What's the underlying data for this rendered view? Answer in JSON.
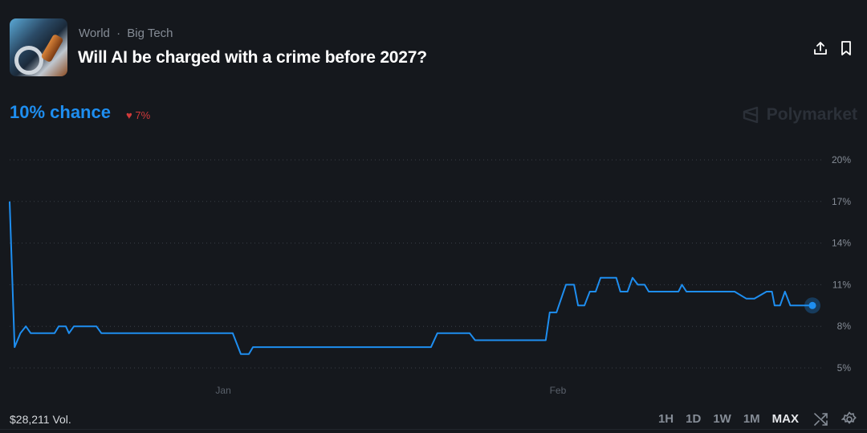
{
  "header": {
    "breadcrumbs": [
      "World",
      "Big Tech"
    ],
    "separator": "·",
    "title": "Will AI be charged with a crime before 2027?",
    "thumbnail_icon": "handcuffs-gavel-image",
    "share_icon": "share-icon",
    "bookmark_icon": "bookmark-icon"
  },
  "summary": {
    "chance_label": "10% chance",
    "delta_label": "7%",
    "delta_direction": "down",
    "brand": "Polymarket"
  },
  "footer": {
    "volume": "$28,211 Vol.",
    "ranges": [
      "1H",
      "1D",
      "1W",
      "1M",
      "MAX"
    ],
    "active_range": "MAX"
  },
  "colors": {
    "line": "#1e8ef0",
    "down": "#d23a3a",
    "background": "#15181d"
  },
  "chart_data": {
    "type": "line",
    "ylim": [
      5,
      20
    ],
    "yticks": [
      5,
      8,
      11,
      14,
      17,
      20
    ],
    "ytick_labels": [
      "5%",
      "8%",
      "11%",
      "14%",
      "17%",
      "20%"
    ],
    "xticks": [
      {
        "label": "Jan",
        "date": "Jan 1 00:00"
      },
      {
        "label": "Feb",
        "date": "Feb 1 00:00"
      }
    ],
    "grid": true,
    "series": [
      {
        "points": [
          [
            "Dec 12 05:00",
            17
          ],
          [
            "Dec 12 16:00",
            6.5
          ],
          [
            "Dec 13 05:00",
            7.5
          ],
          [
            "Dec 13 17:00",
            8
          ],
          [
            "Dec 14 04:00",
            7.5
          ],
          [
            "Dec 16 09:00",
            7.5
          ],
          [
            "Dec 16 18:00",
            8
          ],
          [
            "Dec 17 10:00",
            8
          ],
          [
            "Dec 17 17:00",
            7.5
          ],
          [
            "Dec 18 04:00",
            8
          ],
          [
            "Dec 20 06:00",
            8
          ],
          [
            "Dec 20 17:00",
            7.5
          ],
          [
            "Jan 1 21:00",
            7.5
          ],
          [
            "Jan 2 15:00",
            6
          ],
          [
            "Jan 3 09:00",
            6
          ],
          [
            "Jan 3 18:00",
            6.5
          ],
          [
            "Jan 20 06:00",
            6.5
          ],
          [
            "Jan 20 20:00",
            7.5
          ],
          [
            "Jan 23 20:00",
            7.5
          ],
          [
            "Jan 24 08:00",
            7
          ],
          [
            "Jan 30 21:00",
            7
          ],
          [
            "Jan 31 06:00",
            9
          ],
          [
            "Jan 31 21:00",
            9
          ],
          [
            "Feb 1 18:00",
            11
          ],
          [
            "Feb 2 12:00",
            11
          ],
          [
            "Feb 2 21:00",
            9.5
          ],
          [
            "Feb 3 11:00",
            9.5
          ],
          [
            "Feb 3 23:00",
            10.5
          ],
          [
            "Feb 4 12:00",
            10.5
          ],
          [
            "Feb 4 23:00",
            11.5
          ],
          [
            "Feb 6 10:00",
            11.5
          ],
          [
            "Feb 6 19:00",
            10.5
          ],
          [
            "Feb 7 11:00",
            10.5
          ],
          [
            "Feb 7 22:00",
            11.5
          ],
          [
            "Feb 8 10:00",
            11
          ],
          [
            "Feb 9 01:00",
            11
          ],
          [
            "Feb 9 10:00",
            10.5
          ],
          [
            "Feb 12 04:00",
            10.5
          ],
          [
            "Feb 12 12:00",
            11
          ],
          [
            "Feb 12 22:00",
            10.5
          ],
          [
            "Feb 17 09:00",
            10.5
          ],
          [
            "Feb 18 11:00",
            10
          ],
          [
            "Feb 19 05:00",
            10
          ],
          [
            "Feb 20 08:00",
            10.5
          ],
          [
            "Feb 20 20:00",
            10.5
          ],
          [
            "Feb 21 02:00",
            9.5
          ],
          [
            "Feb 21 14:00",
            9.5
          ],
          [
            "Feb 22 01:00",
            10.5
          ],
          [
            "Feb 22 13:00",
            9.5
          ],
          [
            "Feb 24 14:00",
            9.5
          ]
        ]
      }
    ]
  }
}
